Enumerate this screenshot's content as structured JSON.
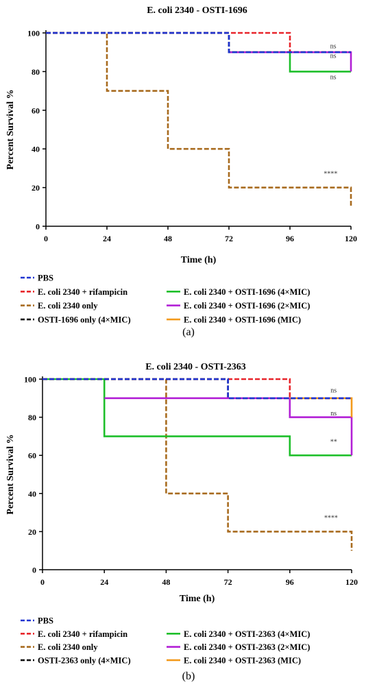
{
  "chart_data": [
    {
      "type": "line",
      "subtype": "kaplan-meier survival (step)",
      "title": "E. coli 2340 - OSTI-1696",
      "xlabel": "Time (h)",
      "ylabel": "Percent Survival %",
      "xlim": [
        0,
        120
      ],
      "ylim": [
        0,
        100
      ],
      "xticks": [
        0,
        24,
        48,
        72,
        96,
        120
      ],
      "yticks": [
        0,
        20,
        40,
        60,
        80,
        100
      ],
      "panel_label": "(a)",
      "legend": [
        {
          "name": "PBS",
          "color": "#1f33d1"
        },
        {
          "name": "E. coli 2340 + rifampicin",
          "color": "#e8252b"
        },
        {
          "name": "E. coli 2340 only",
          "color": "#a86b1f"
        },
        {
          "name": "OSTI-1696 only (4×MIC)",
          "color": "#111111"
        },
        {
          "name": "E. coli 2340 + OSTI-1696 (4×MIC)",
          "color": "#1dbf2a"
        },
        {
          "name": "E. coli 2340 + OSTI-1696 (2×MIC)",
          "color": "#b21fd6"
        },
        {
          "name": "E. coli 2340 + OSTI-1696 (MIC)",
          "color": "#f39a1b"
        }
      ],
      "series": [
        {
          "legend_index": 2,
          "color": "#a86b1f",
          "dashed": true,
          "steps": [
            [
              0,
              100
            ],
            [
              24,
              100
            ],
            [
              24,
              70
            ],
            [
              48,
              70
            ],
            [
              48,
              40
            ],
            [
              72,
              40
            ],
            [
              72,
              20
            ],
            [
              120,
              20
            ],
            [
              120,
              10
            ]
          ]
        },
        {
          "legend_index": 1,
          "color": "#e8252b",
          "dashed": true,
          "steps": [
            [
              0,
              100
            ],
            [
              96,
              100
            ],
            [
              96,
              90
            ],
            [
              120,
              90
            ]
          ]
        },
        {
          "legend_index": 4,
          "color": "#1dbf2a",
          "dashed": false,
          "steps": [
            [
              72,
              90
            ],
            [
              96,
              90
            ],
            [
              96,
              80
            ],
            [
              120,
              80
            ]
          ]
        },
        {
          "legend_index": 5,
          "color": "#b21fd6",
          "dashed": false,
          "steps": [
            [
              72,
              90
            ],
            [
              120,
              90
            ],
            [
              120,
              80
            ]
          ]
        },
        {
          "legend_index": 3,
          "color": "#111111",
          "dashed": true,
          "steps": [
            [
              0,
              100
            ],
            [
              72,
              100
            ],
            [
              72,
              90
            ],
            [
              120,
              90
            ]
          ]
        },
        {
          "legend_index": 0,
          "color": "#1f33d1",
          "dashed": true,
          "steps": [
            [
              0,
              100
            ],
            [
              72,
              100
            ],
            [
              72,
              90
            ],
            [
              120,
              90
            ]
          ]
        }
      ],
      "annotations": [
        {
          "text": "ns",
          "x": 113,
          "y": 92
        },
        {
          "text": "ns",
          "x": 113,
          "y": 87
        },
        {
          "text": "ns",
          "x": 113,
          "y": 76
        },
        {
          "text": "****",
          "x": 112,
          "y": 26
        }
      ]
    },
    {
      "type": "line",
      "subtype": "kaplan-meier survival (step)",
      "title": "E. coli 2340 - OSTI-2363",
      "xlabel": "Time (h)",
      "ylabel": "Percent Survival %",
      "xlim": [
        0,
        120
      ],
      "ylim": [
        0,
        100
      ],
      "xticks": [
        0,
        24,
        48,
        72,
        96,
        120
      ],
      "yticks": [
        0,
        20,
        40,
        60,
        80,
        100
      ],
      "panel_label": "(b)",
      "legend": [
        {
          "name": "PBS",
          "color": "#1f33d1"
        },
        {
          "name": "E. coli 2340 + rifampicin",
          "color": "#e8252b"
        },
        {
          "name": "E. coli 2340 only",
          "color": "#a86b1f"
        },
        {
          "name": "OSTI-2363 only (4×MIC)",
          "color": "#111111"
        },
        {
          "name": "E. coli 2340 + OSTI-2363 (4×MIC)",
          "color": "#1dbf2a"
        },
        {
          "name": "E. coli 2340 + OSTI-2363 (2×MIC)",
          "color": "#b21fd6"
        },
        {
          "name": "E. coli 2340 + OSTI-2363 (MIC)",
          "color": "#f39a1b"
        }
      ],
      "series": [
        {
          "legend_index": 2,
          "color": "#a86b1f",
          "dashed": true,
          "steps": [
            [
              0,
              100
            ],
            [
              24,
              100
            ],
            [
              48,
              100
            ],
            [
              48,
              70
            ],
            [
              48,
              40
            ],
            [
              72,
              40
            ],
            [
              72,
              20
            ],
            [
              120,
              20
            ],
            [
              120,
              10
            ]
          ]
        },
        {
          "legend_index": 4,
          "color": "#1dbf2a",
          "dashed": false,
          "steps": [
            [
              0,
              100
            ],
            [
              24,
              100
            ],
            [
              24,
              70
            ],
            [
              96,
              70
            ],
            [
              96,
              60
            ],
            [
              120,
              60
            ]
          ]
        },
        {
          "legend_index": 5,
          "color": "#b21fd6",
          "dashed": false,
          "steps": [
            [
              24,
              90
            ],
            [
              96,
              90
            ],
            [
              96,
              80
            ],
            [
              120,
              80
            ],
            [
              120,
              60
            ]
          ]
        },
        {
          "legend_index": 6,
          "color": "#f39a1b",
          "dashed": false,
          "steps": [
            [
              96,
              90
            ],
            [
              120,
              90
            ],
            [
              120,
              80
            ]
          ]
        },
        {
          "legend_index": 1,
          "color": "#e8252b",
          "dashed": true,
          "steps": [
            [
              0,
              100
            ],
            [
              96,
              100
            ],
            [
              96,
              90
            ],
            [
              120,
              90
            ]
          ]
        },
        {
          "legend_index": 3,
          "color": "#111111",
          "dashed": true,
          "steps": [
            [
              0,
              100
            ],
            [
              72,
              100
            ],
            [
              72,
              90
            ],
            [
              120,
              90
            ]
          ]
        },
        {
          "legend_index": 0,
          "color": "#1f33d1",
          "dashed": true,
          "steps": [
            [
              0,
              100
            ],
            [
              72,
              100
            ],
            [
              72,
              90
            ],
            [
              120,
              90
            ]
          ]
        }
      ],
      "annotations": [
        {
          "text": "ns",
          "x": 113,
          "y": 93
        },
        {
          "text": "ns",
          "x": 113,
          "y": 81
        },
        {
          "text": "**",
          "x": 113,
          "y": 66
        },
        {
          "text": "****",
          "x": 112,
          "y": 26
        }
      ]
    }
  ]
}
